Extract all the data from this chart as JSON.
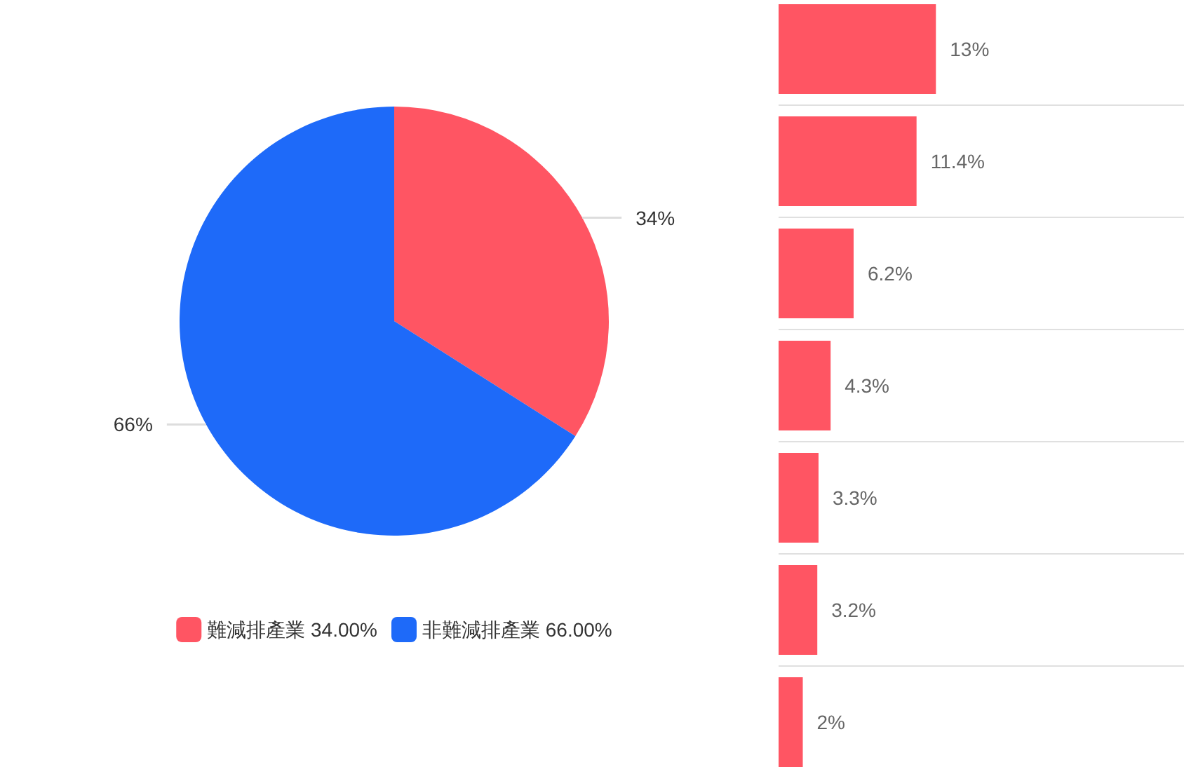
{
  "chart_data": [
    {
      "type": "pie",
      "categories": [
        "難減排產業 34.00%",
        "非難減排產業 66.00%"
      ],
      "values": [
        34,
        66
      ],
      "colors": [
        "#ff5563",
        "#1e6af9"
      ],
      "value_labels": [
        "34%",
        "66%"
      ],
      "legend": "bottom"
    },
    {
      "type": "bar",
      "orientation": "horizontal",
      "categories": [
        null,
        null,
        null,
        null,
        null,
        null,
        null
      ],
      "values": [
        13,
        11.4,
        6.2,
        4.3,
        3.3,
        3.2,
        2
      ],
      "color": "#ff5563",
      "value_labels": [
        "13%",
        "11.4%",
        "6.2%",
        "4.3%",
        "3.3%",
        "3.2%",
        "2%"
      ],
      "xlim": [
        0,
        33.5
      ],
      "grid": "y"
    }
  ]
}
